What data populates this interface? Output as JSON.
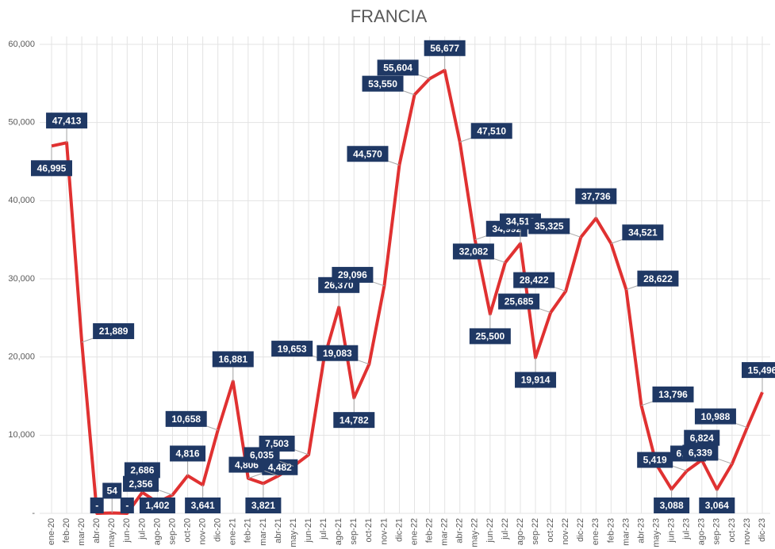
{
  "chart_data": {
    "type": "line",
    "title": "FRANCIA",
    "categories": [
      "ene-20",
      "feb-20",
      "mar-20",
      "abr-20",
      "may-20",
      "jun-20",
      "jul-20",
      "ago-20",
      "sep-20",
      "oct-20",
      "nov-20",
      "dic-20",
      "ene-21",
      "feb-21",
      "mar-21",
      "abr-21",
      "may-21",
      "jun-21",
      "jul-21",
      "ago-21",
      "sep-21",
      "oct-21",
      "nov-21",
      "dic-21",
      "ene-22",
      "feb-22",
      "mar-22",
      "abr-22",
      "may-22",
      "jun-22",
      "jul-22",
      "ago-22",
      "sep-22",
      "oct-22",
      "nov-22",
      "dic-22",
      "ene-23",
      "feb-23",
      "mar-23",
      "abr-23",
      "may-23",
      "jun-23",
      "jul-23",
      "ago-23",
      "sep-23",
      "oct-23",
      "nov-23",
      "dic-23"
    ],
    "series": [
      {
        "color": "#e03131",
        "values": [
          46995,
          47413,
          21889,
          0,
          54,
          0,
          2686,
          1402,
          2356,
          4816,
          3641,
          10658,
          16881,
          4482,
          3821,
          4806,
          6035,
          7503,
          19653,
          26370,
          14782,
          19083,
          29096,
          44570,
          53550,
          55604,
          56677,
          47510,
          34992,
          25500,
          32082,
          34512,
          19914,
          25685,
          28422,
          35325,
          37736,
          34521,
          28622,
          13796,
          6236,
          3088,
          5419,
          6824,
          3064,
          6339,
          10988,
          15496
        ],
        "value_labels": [
          "46,995",
          "47,413",
          "21,889",
          "-",
          "54",
          "-",
          "2,686",
          "1,402",
          "2,356",
          "4,816",
          "3,641",
          "10,658",
          "16,881",
          "4,482",
          "3,821",
          "4,806",
          "6,035",
          "7,503",
          "19,653",
          "26,370",
          "14,782",
          "19,083",
          "29,096",
          "44,570",
          "53,550",
          "55,604",
          "56,677",
          "47,510",
          "34,992",
          "25,500",
          "32,082",
          "34,512",
          "19,914",
          "25,685",
          "28,422",
          "35,325",
          "37,736",
          "34,521",
          "28,622",
          "13,796",
          "6,236",
          "3,088",
          "5,419",
          "6,824",
          "3,064",
          "6,339",
          "10,988",
          "15,496"
        ]
      }
    ],
    "ylim": [
      0,
      60000
    ],
    "yticks": [
      {
        "value": 0,
        "label": "-"
      },
      {
        "value": 10000,
        "label": "10,000"
      },
      {
        "value": 20000,
        "label": "20,000"
      },
      {
        "value": 30000,
        "label": "30,000"
      },
      {
        "value": 40000,
        "label": "40,000"
      },
      {
        "value": 50000,
        "label": "50,000"
      },
      {
        "value": 60000,
        "label": "60,000"
      }
    ],
    "grid": true
  }
}
